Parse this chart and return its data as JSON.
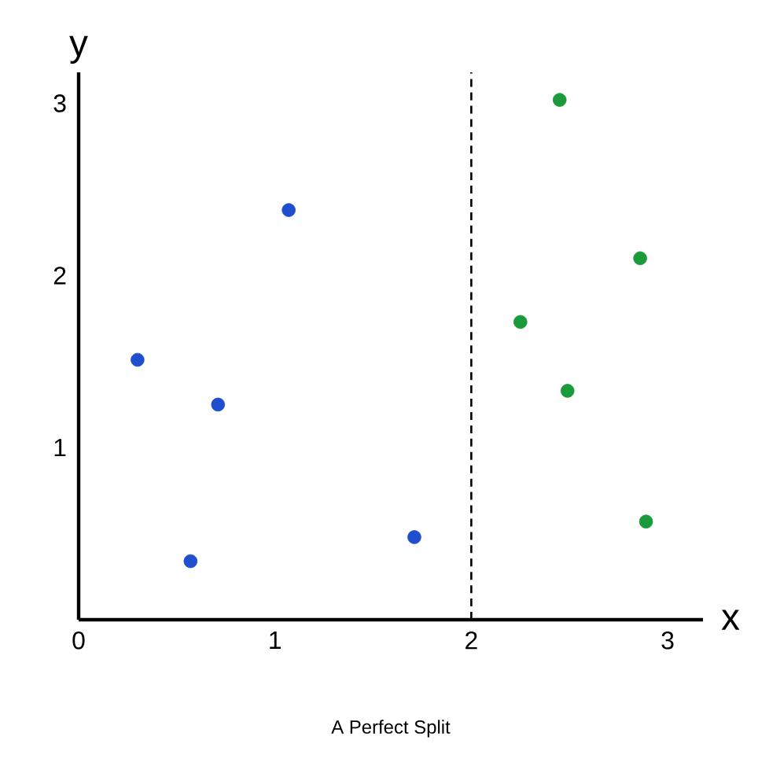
{
  "chart_data": {
    "type": "scatter",
    "title": "A Perfect Split",
    "xlabel": "x",
    "ylabel": "y",
    "xlim": [
      0,
      3.18
    ],
    "ylim": [
      0,
      3.18
    ],
    "xticks": [
      0,
      1,
      2,
      3
    ],
    "yticks": [
      1,
      2,
      3
    ],
    "grid": false,
    "series": [
      {
        "color": "#1f4fcf",
        "x": [
          0.3,
          1.07,
          0.71,
          0.57,
          1.71
        ],
        "values": [
          1.51,
          2.38,
          1.25,
          0.34,
          0.48
        ]
      },
      {
        "color": "#1a9a3a",
        "x": [
          2.45,
          2.86,
          2.25,
          2.49,
          2.89
        ],
        "values": [
          3.02,
          2.1,
          1.73,
          1.33,
          0.57
        ]
      }
    ],
    "ref_lines": [
      {
        "axis": "x",
        "value": 2,
        "line_style": "dashed"
      }
    ]
  }
}
